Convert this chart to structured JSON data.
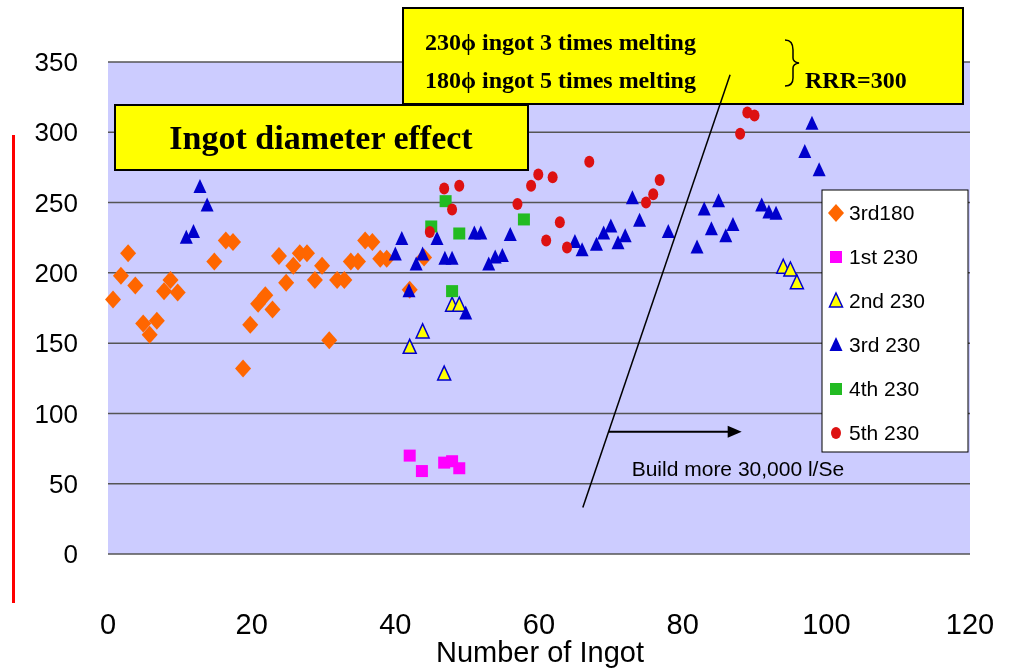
{
  "chart_data": {
    "type": "scatter",
    "xlabel": "Number of Ingot",
    "xlim": [
      0,
      120
    ],
    "xticks": [
      0,
      20,
      40,
      60,
      80,
      100,
      120
    ],
    "ylim": [
      0,
      350
    ],
    "yticks": [
      0,
      50,
      100,
      150,
      200,
      250,
      300,
      350
    ],
    "grid": "y",
    "legend": "right",
    "annotations": [
      "Ingot diameter effect",
      "230ϕ ingot 3 times melting",
      "180ϕ ingot 5 times melting",
      "RRR=300",
      {
        "text": "Build more 30,000 l/Se",
        "x": 69.7,
        "y": 87
      }
    ],
    "series": [
      {
        "name": "3rd180",
        "color": "#ff6600",
        "marker": "diamond",
        "x": [
          0.7,
          1.8,
          2.8,
          3.8,
          4.9,
          5.8,
          6.8,
          7.8,
          8.7,
          9.7,
          14.8,
          16.4,
          17.4,
          18.8,
          19.8,
          20.9,
          21.9,
          22.9,
          23.8,
          24.8,
          25.8,
          26.7,
          27.7,
          28.8,
          29.8,
          30.8,
          31.9,
          32.9,
          33.8,
          34.8,
          35.8,
          36.8,
          37.9,
          38.8,
          42,
          44
        ],
        "values": [
          181,
          198,
          214,
          191,
          164,
          156,
          166,
          187,
          195,
          186,
          208,
          223,
          222,
          132,
          163,
          178,
          184,
          174,
          212,
          193,
          205,
          214,
          214,
          195,
          205,
          152,
          195,
          195,
          208,
          208,
          223,
          222,
          210,
          210,
          188,
          211
        ]
      },
      {
        "name": "1st 230",
        "color": "#ff00ff",
        "marker": "square",
        "x": [
          42,
          43.7,
          46.8,
          47.9,
          48.9
        ],
        "values": [
          70,
          59,
          65,
          66,
          61
        ]
      },
      {
        "name": "2nd 230",
        "color": "#ffff00",
        "marker": "triangle",
        "x": [
          42,
          43.8,
          46.8,
          47.9,
          48.9,
          94,
          95,
          95.9
        ],
        "values": [
          147,
          158,
          128,
          177,
          177,
          204,
          202,
          193
        ]
      },
      {
        "name": "3rd 230",
        "color": "#0000cc",
        "marker": "triangle",
        "x": [
          10.9,
          11.9,
          12.8,
          13.8,
          40,
          40.9,
          41.9,
          42.9,
          43.8,
          45.8,
          46.9,
          47.9,
          49.8,
          51,
          51.9,
          53,
          53.9,
          54.9,
          56,
          65,
          66,
          68,
          69,
          70,
          71,
          72,
          73,
          74,
          78,
          82,
          83,
          84,
          85,
          86,
          87,
          91,
          92,
          93,
          97,
          98,
          99
        ],
        "values": [
          225,
          229,
          261,
          248,
          213,
          224,
          187,
          206,
          213,
          224,
          210,
          210,
          171,
          228,
          228,
          206,
          211,
          212,
          227,
          222,
          216,
          220,
          228,
          233,
          221,
          226,
          253,
          237,
          229,
          218,
          245,
          231,
          251,
          226,
          234,
          248,
          243,
          242,
          286,
          306,
          273
        ]
      },
      {
        "name": "4th 230",
        "color": "#22bb22",
        "marker": "square",
        "x": [
          45,
          47,
          47.9,
          48.9,
          57.9
        ],
        "values": [
          233,
          251,
          187,
          228,
          238
        ]
      },
      {
        "type": "line",
        "color": "#000000",
        "x": [
          66.1,
          86.6
        ],
        "values": [
          33,
          341
        ]
      },
      {
        "name": "5th 230",
        "color": "#dd1111",
        "marker": "circle",
        "x": [
          44.8,
          46.8,
          47.9,
          48.9,
          57,
          58.9,
          59.9,
          61,
          61.9,
          62.9,
          63.9,
          67,
          74.9,
          75.9,
          76.8,
          88,
          89,
          90
        ],
        "values": [
          229,
          260,
          245,
          262,
          249,
          262,
          270,
          223,
          268,
          236,
          218,
          279,
          250,
          256,
          266,
          299,
          314,
          312
        ]
      }
    ]
  }
}
